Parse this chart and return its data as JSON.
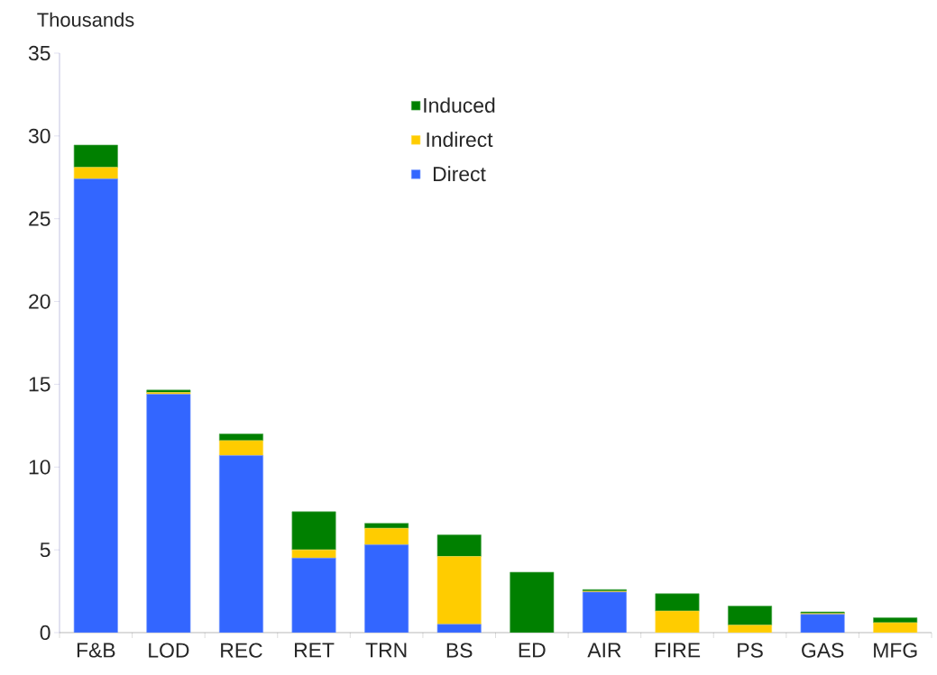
{
  "chart_data": {
    "type": "bar",
    "stacked": true,
    "ylabel": "Thousands",
    "categories": [
      "F&B",
      "LOD",
      "REC",
      "RET",
      "TRN",
      "BS",
      "ED",
      "AIR",
      "FIRE",
      "PS",
      "GAS",
      "MFG"
    ],
    "series": [
      {
        "name": "Direct",
        "color": "#3366ff",
        "values": [
          27.4,
          14.4,
          10.7,
          4.5,
          5.3,
          0.5,
          0,
          2.45,
          0,
          0,
          1.1,
          0
        ]
      },
      {
        "name": "Indirect",
        "color": "#ffcc00",
        "values": [
          0.7,
          0.1,
          0.9,
          0.5,
          1.0,
          4.1,
          0,
          0.05,
          1.3,
          0.45,
          0.05,
          0.6
        ]
      },
      {
        "name": "Induced",
        "color": "#008000",
        "values": [
          1.35,
          0.15,
          0.4,
          2.3,
          0.3,
          1.3,
          3.65,
          0.1,
          1.05,
          1.15,
          0.1,
          0.3
        ]
      }
    ],
    "ylim": [
      0,
      35
    ],
    "yticks": [
      0,
      5,
      10,
      15,
      20,
      25,
      30,
      35
    ],
    "legend": "top",
    "grid": false
  }
}
